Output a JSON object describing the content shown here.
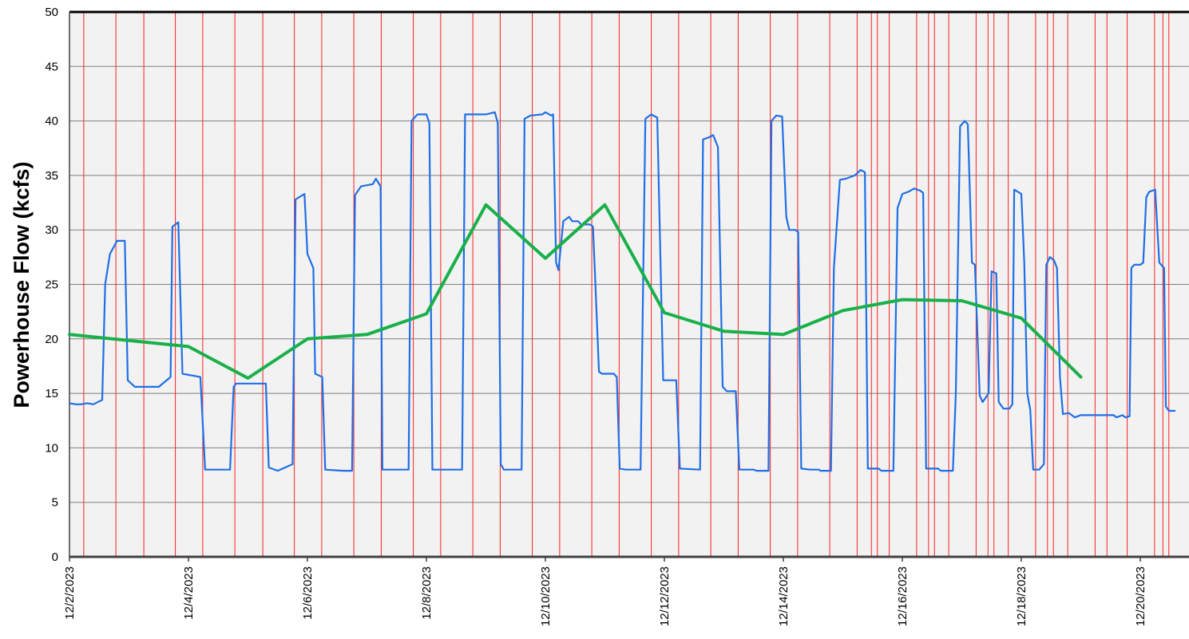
{
  "chart_data": {
    "type": "line",
    "title": "",
    "xlabel": "",
    "ylabel": "Powerhouse Flow (kcfs)",
    "xlim": [
      0,
      18.55
    ],
    "ylim": [
      0,
      50
    ],
    "x_ticks": [
      {
        "x": 0,
        "label": "12/2/2023"
      },
      {
        "x": 2,
        "label": "12/4/2023"
      },
      {
        "x": 4,
        "label": "12/6/2023"
      },
      {
        "x": 6,
        "label": "12/8/2023"
      },
      {
        "x": 8,
        "label": "12/10/2023"
      },
      {
        "x": 10,
        "label": "12/12/2023"
      },
      {
        "x": 12,
        "label": "12/14/2023"
      },
      {
        "x": 14,
        "label": "12/16/2023"
      },
      {
        "x": 16,
        "label": "12/18/2023"
      },
      {
        "x": 18,
        "label": "12/20/2023"
      }
    ],
    "y_ticks": [
      0,
      5,
      10,
      15,
      20,
      25,
      30,
      35,
      40,
      45,
      50
    ],
    "grid": true,
    "background": "#f2f2f2",
    "colors": {
      "hourly": "#1f6fe6",
      "daily_average": "#19b04a",
      "event_lines": "#ff1f1f",
      "grid": "#7f7f7f"
    },
    "event_lines_x": [
      0.24,
      0.78,
      1.25,
      1.78,
      2.24,
      2.78,
      3.25,
      3.78,
      4.24,
      4.78,
      5.24,
      5.78,
      6.24,
      6.78,
      7.24,
      7.78,
      8.24,
      8.78,
      9.24,
      9.78,
      10.24,
      10.78,
      11.24,
      11.78,
      12.24,
      12.78,
      13.24,
      13.48,
      13.58,
      13.78,
      14.24,
      14.44,
      14.54,
      14.78,
      15.24,
      15.44,
      15.54,
      15.78,
      16.24,
      16.44,
      16.54,
      16.78,
      17.24,
      17.44,
      17.78,
      18.24,
      18.38,
      18.48
    ],
    "series": [
      {
        "values": [
          [
            0,
            14.1
          ],
          [
            0.1,
            14.0
          ],
          [
            0.2,
            14.0
          ],
          [
            0.3,
            14.1
          ],
          [
            0.4,
            14.0
          ],
          [
            0.55,
            14.4
          ],
          [
            0.6,
            25.0
          ],
          [
            0.68,
            27.8
          ],
          [
            0.8,
            29.0
          ],
          [
            0.93,
            29.0
          ],
          [
            0.98,
            16.2
          ],
          [
            1.1,
            15.6
          ],
          [
            1.5,
            15.6
          ],
          [
            1.7,
            16.5
          ],
          [
            1.73,
            30.3
          ],
          [
            1.83,
            30.7
          ],
          [
            1.9,
            16.8
          ],
          [
            2.2,
            16.5
          ],
          [
            2.28,
            8.0
          ],
          [
            2.7,
            8.0
          ],
          [
            2.76,
            15.6
          ],
          [
            2.8,
            15.9
          ],
          [
            3.3,
            15.9
          ],
          [
            3.35,
            8.2
          ],
          [
            3.5,
            7.9
          ],
          [
            3.75,
            8.5
          ],
          [
            3.8,
            32.8
          ],
          [
            3.95,
            33.3
          ],
          [
            4.0,
            27.8
          ],
          [
            4.1,
            26.5
          ],
          [
            4.13,
            16.8
          ],
          [
            4.25,
            16.5
          ],
          [
            4.3,
            8.0
          ],
          [
            4.6,
            7.9
          ],
          [
            4.75,
            7.9
          ],
          [
            4.8,
            33.2
          ],
          [
            4.9,
            34.0
          ],
          [
            5.1,
            34.2
          ],
          [
            5.15,
            34.7
          ],
          [
            5.23,
            34.0
          ],
          [
            5.26,
            8.0
          ],
          [
            5.7,
            8.0
          ],
          [
            5.75,
            40.0
          ],
          [
            5.85,
            40.6
          ],
          [
            6.0,
            40.6
          ],
          [
            6.05,
            39.8
          ],
          [
            6.1,
            8.0
          ],
          [
            6.6,
            8.0
          ],
          [
            6.65,
            40.6
          ],
          [
            7.0,
            40.6
          ],
          [
            7.15,
            40.8
          ],
          [
            7.2,
            39.8
          ],
          [
            7.25,
            8.5
          ],
          [
            7.3,
            8.0
          ],
          [
            7.6,
            8.0
          ],
          [
            7.65,
            40.2
          ],
          [
            7.75,
            40.5
          ],
          [
            7.95,
            40.6
          ],
          [
            8.0,
            40.8
          ],
          [
            8.1,
            40.5
          ],
          [
            8.13,
            40.6
          ],
          [
            8.18,
            27.0
          ],
          [
            8.22,
            26.3
          ],
          [
            8.3,
            30.8
          ],
          [
            8.4,
            31.2
          ],
          [
            8.45,
            30.8
          ],
          [
            8.55,
            30.8
          ],
          [
            8.6,
            30.5
          ],
          [
            8.75,
            30.5
          ],
          [
            8.8,
            30.3
          ],
          [
            8.83,
            26.5
          ],
          [
            8.9,
            17.0
          ],
          [
            8.95,
            16.8
          ],
          [
            9.15,
            16.8
          ],
          [
            9.2,
            16.5
          ],
          [
            9.25,
            8.1
          ],
          [
            9.35,
            8.0
          ],
          [
            9.6,
            8.0
          ],
          [
            9.68,
            40.2
          ],
          [
            9.78,
            40.6
          ],
          [
            9.88,
            40.3
          ],
          [
            9.98,
            16.2
          ],
          [
            10.2,
            16.2
          ],
          [
            10.26,
            8.1
          ],
          [
            10.6,
            8.0
          ],
          [
            10.65,
            38.3
          ],
          [
            10.75,
            38.5
          ],
          [
            10.82,
            38.7
          ],
          [
            10.9,
            37.6
          ],
          [
            10.98,
            15.6
          ],
          [
            11.05,
            15.2
          ],
          [
            11.2,
            15.2
          ],
          [
            11.26,
            8.0
          ],
          [
            11.5,
            8.0
          ],
          [
            11.55,
            7.9
          ],
          [
            11.75,
            7.9
          ],
          [
            11.8,
            40.0
          ],
          [
            11.88,
            40.5
          ],
          [
            11.98,
            40.4
          ],
          [
            12.05,
            31.2
          ],
          [
            12.1,
            30.0
          ],
          [
            12.2,
            30.0
          ],
          [
            12.25,
            29.8
          ],
          [
            12.3,
            8.1
          ],
          [
            12.45,
            8.0
          ],
          [
            12.6,
            8.0
          ],
          [
            12.62,
            7.9
          ],
          [
            12.8,
            7.9
          ],
          [
            12.85,
            26.5
          ],
          [
            12.95,
            34.6
          ],
          [
            13.05,
            34.7
          ],
          [
            13.2,
            35.0
          ],
          [
            13.3,
            35.5
          ],
          [
            13.37,
            35.3
          ],
          [
            13.42,
            8.1
          ],
          [
            13.6,
            8.1
          ],
          [
            13.65,
            7.9
          ],
          [
            13.85,
            7.9
          ],
          [
            13.92,
            32.0
          ],
          [
            14.0,
            33.3
          ],
          [
            14.1,
            33.5
          ],
          [
            14.2,
            33.8
          ],
          [
            14.3,
            33.6
          ],
          [
            14.35,
            33.4
          ],
          [
            14.4,
            8.1
          ],
          [
            14.6,
            8.1
          ],
          [
            14.65,
            7.9
          ],
          [
            14.85,
            7.9
          ],
          [
            14.9,
            15.0
          ],
          [
            14.97,
            39.5
          ],
          [
            15.05,
            40.0
          ],
          [
            15.1,
            39.7
          ],
          [
            15.17,
            27.0
          ],
          [
            15.22,
            26.8
          ],
          [
            15.3,
            14.8
          ],
          [
            15.35,
            14.2
          ],
          [
            15.45,
            15.0
          ],
          [
            15.5,
            26.2
          ],
          [
            15.58,
            26.0
          ],
          [
            15.62,
            14.2
          ],
          [
            15.7,
            13.6
          ],
          [
            15.8,
            13.6
          ],
          [
            15.85,
            14.0
          ],
          [
            15.88,
            33.7
          ],
          [
            16.0,
            33.3
          ],
          [
            16.05,
            27.0
          ],
          [
            16.1,
            15.0
          ],
          [
            16.15,
            13.5
          ],
          [
            16.2,
            8.0
          ],
          [
            16.3,
            8.0
          ],
          [
            16.38,
            8.5
          ],
          [
            16.42,
            26.8
          ],
          [
            16.48,
            27.5
          ],
          [
            16.55,
            27.2
          ],
          [
            16.6,
            26.5
          ],
          [
            16.65,
            16.5
          ],
          [
            16.7,
            13.1
          ],
          [
            16.8,
            13.2
          ],
          [
            16.9,
            12.8
          ],
          [
            17.0,
            13.0
          ],
          [
            17.2,
            13.0
          ],
          [
            17.4,
            13.0
          ],
          [
            17.55,
            13.0
          ],
          [
            17.6,
            12.8
          ],
          [
            17.7,
            13.0
          ],
          [
            17.75,
            12.8
          ],
          [
            17.82,
            12.9
          ],
          [
            17.85,
            26.5
          ],
          [
            17.9,
            26.8
          ],
          [
            18.0,
            26.8
          ],
          [
            18.05,
            27.0
          ],
          [
            18.1,
            33.0
          ],
          [
            18.15,
            33.5
          ],
          [
            18.25,
            33.7
          ],
          [
            18.32,
            27.0
          ],
          [
            18.4,
            26.5
          ],
          [
            18.43,
            13.8
          ],
          [
            18.48,
            13.4
          ],
          [
            18.58,
            13.4
          ]
        ]
      },
      {
        "values": [
          [
            0,
            20.4
          ],
          [
            2.0,
            19.3
          ],
          [
            3.0,
            16.4
          ],
          [
            4.0,
            20.0
          ],
          [
            5.0,
            20.4
          ],
          [
            6.0,
            22.3
          ],
          [
            7.0,
            32.3
          ],
          [
            8.0,
            27.4
          ],
          [
            9.0,
            32.3
          ],
          [
            10.0,
            22.4
          ],
          [
            11.0,
            20.7
          ],
          [
            12.0,
            20.4
          ],
          [
            13.0,
            22.6
          ],
          [
            14.0,
            23.6
          ],
          [
            15.0,
            23.5
          ],
          [
            16.0,
            21.9
          ],
          [
            17.0,
            16.5
          ]
        ]
      }
    ]
  }
}
